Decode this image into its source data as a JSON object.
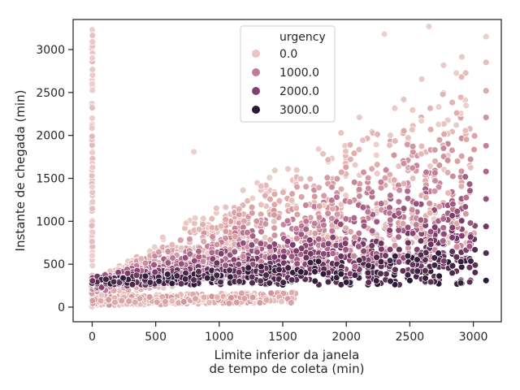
{
  "chart_data": {
    "type": "scatter",
    "xlabel_line1": "Limite inferior da janela",
    "xlabel_line2": "de tempo de coleta (min)",
    "ylabel": "Instante de chegada (min)",
    "xlim": [
      -150,
      3220
    ],
    "ylim": [
      -170,
      3350
    ],
    "x_ticks": [
      0,
      500,
      1000,
      1500,
      2000,
      2500,
      3000
    ],
    "y_ticks": [
      0,
      500,
      1000,
      1500,
      2000,
      2500,
      3000
    ],
    "grid": false,
    "legend_position": "top-center",
    "hue_name": "urgency",
    "legend": [
      {
        "label": "0.0",
        "color": "#e9c4c2"
      },
      {
        "label": "1000.0",
        "color": "#c07d99"
      },
      {
        "label": "2000.0",
        "color": "#83416f"
      },
      {
        "label": "3000.0",
        "color": "#2a1a35"
      }
    ],
    "series_note_free": true,
    "points_sample": [
      {
        "x": 0,
        "y": 3230,
        "urgency": 0
      },
      {
        "x": 0,
        "y": 2900,
        "urgency": 0
      },
      {
        "x": 0,
        "y": 2600,
        "urgency": 0
      },
      {
        "x": 0,
        "y": 2200,
        "urgency": 0
      },
      {
        "x": 0,
        "y": 1800,
        "urgency": 0
      },
      {
        "x": 0,
        "y": 1400,
        "urgency": 0
      },
      {
        "x": 0,
        "y": 1000,
        "urgency": 0
      },
      {
        "x": 0,
        "y": 600,
        "urgency": 0
      },
      {
        "x": 0,
        "y": 200,
        "urgency": 0
      },
      {
        "x": 3100,
        "y": 3150,
        "urgency": 0
      },
      {
        "x": 3100,
        "y": 2850,
        "urgency": 300
      },
      {
        "x": 3100,
        "y": 2520,
        "urgency": 700
      },
      {
        "x": 3100,
        "y": 2210,
        "urgency": 1000
      },
      {
        "x": 3100,
        "y": 1880,
        "urgency": 1300
      },
      {
        "x": 3100,
        "y": 1580,
        "urgency": 1600
      },
      {
        "x": 3100,
        "y": 1260,
        "urgency": 1900
      },
      {
        "x": 3100,
        "y": 940,
        "urgency": 2300
      },
      {
        "x": 3100,
        "y": 630,
        "urgency": 2600
      },
      {
        "x": 3100,
        "y": 310,
        "urgency": 3000
      },
      {
        "x": 2650,
        "y": 3270,
        "urgency": 0
      },
      {
        "x": 2300,
        "y": 3180,
        "urgency": 0
      },
      {
        "x": 800,
        "y": 1810,
        "urgency": 0
      },
      {
        "x": 2900,
        "y": 300,
        "urgency": 3000
      },
      {
        "x": 2500,
        "y": 310,
        "urgency": 3000
      },
      {
        "x": 2000,
        "y": 290,
        "urgency": 3000
      },
      {
        "x": 1500,
        "y": 260,
        "urgency": 3000
      }
    ]
  }
}
